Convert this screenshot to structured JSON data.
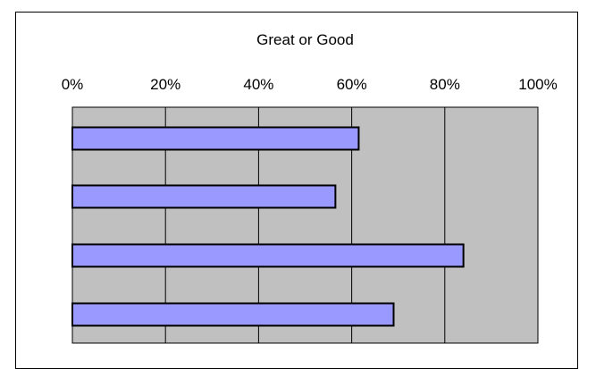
{
  "chart_data": {
    "type": "bar",
    "orientation": "horizontal",
    "title": "Great or Good",
    "x_tick_labels": [
      "0%",
      "20%",
      "40%",
      "60%",
      "80%",
      "100%"
    ],
    "x_ticks": [
      0,
      20,
      40,
      60,
      80,
      100
    ],
    "xlim": [
      0,
      100
    ],
    "xlabel": "",
    "ylabel": "",
    "categories": [
      "",
      "",
      "",
      ""
    ],
    "values": [
      61.5,
      56.5,
      84,
      69
    ],
    "grid": true,
    "axis_position": "top",
    "colors": {
      "bar_fill": "#9999FF",
      "bar_stroke": "#000000",
      "plot_background": "#C0C0C0",
      "gridline": "#000000"
    }
  }
}
